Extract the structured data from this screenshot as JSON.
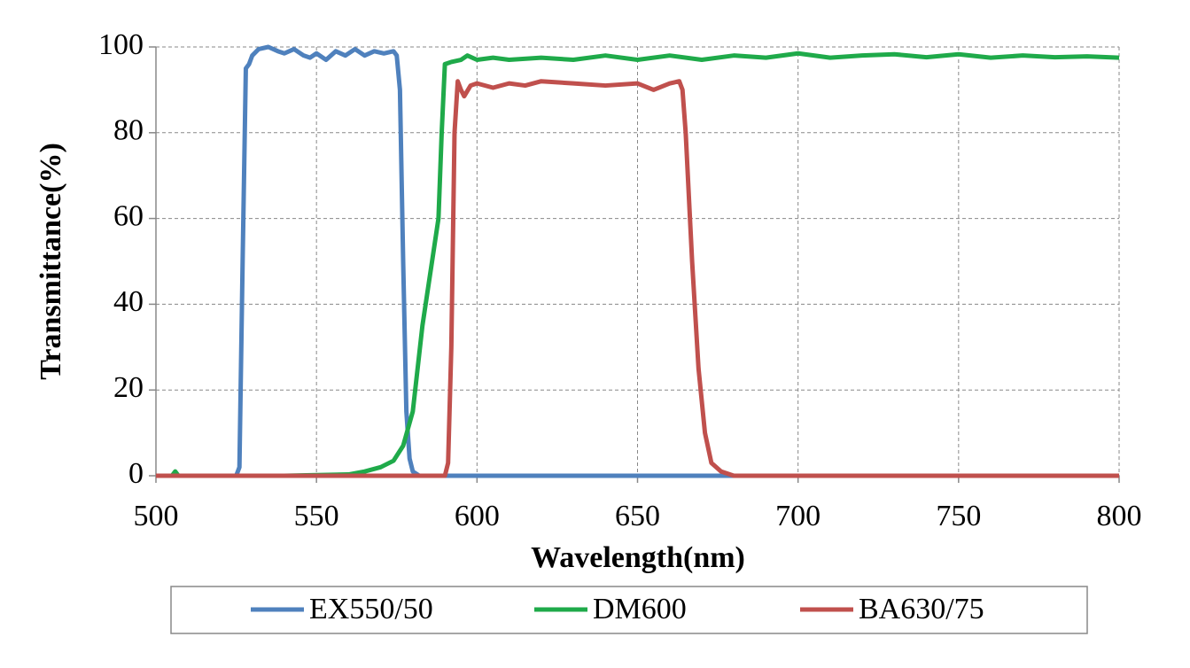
{
  "chart_data": {
    "type": "line",
    "x_label": "Wavelength(nm)",
    "y_label": "Transmittance(%)",
    "xlim": [
      500,
      800
    ],
    "xticks": [
      500,
      550,
      600,
      650,
      700,
      750,
      800
    ],
    "ylim": [
      0,
      100
    ],
    "yticks": [
      0,
      20,
      40,
      60,
      80,
      100
    ],
    "grid": true,
    "legend": "bottom",
    "series": [
      {
        "name": "EX550/50",
        "color": "#4f81bd",
        "x": [
          500,
          525,
          526,
          527,
          528,
          529,
          530,
          532,
          535,
          538,
          540,
          543,
          546,
          548,
          550,
          553,
          556,
          559,
          562,
          565,
          568,
          571,
          574,
          575,
          576,
          577,
          578,
          579,
          580,
          582,
          800
        ],
        "values": [
          0,
          0,
          2,
          50,
          95,
          96,
          98,
          99.5,
          100,
          99,
          98.5,
          99.5,
          98,
          97.5,
          98.5,
          97,
          99,
          98,
          99.5,
          98,
          99,
          98.5,
          99,
          98,
          90,
          50,
          15,
          4,
          1,
          0,
          0
        ]
      },
      {
        "name": "DM600",
        "color": "#1faa4a",
        "x": [
          500,
          505,
          506,
          507,
          540,
          560,
          565,
          570,
          574,
          577,
          580,
          583,
          586,
          588,
          589,
          590,
          592,
          595,
          597,
          600,
          605,
          610,
          620,
          630,
          640,
          650,
          660,
          670,
          680,
          690,
          700,
          710,
          720,
          730,
          740,
          750,
          760,
          770,
          780,
          790,
          800
        ],
        "values": [
          0,
          0,
          1,
          0,
          0,
          0.3,
          1,
          2,
          3.5,
          7,
          15,
          35,
          50,
          60,
          80,
          96,
          96.5,
          97,
          98,
          97,
          97.5,
          97,
          97.5,
          97,
          98,
          97,
          98,
          97,
          98,
          97.5,
          98.5,
          97.5,
          98,
          98.3,
          97.6,
          98.3,
          97.5,
          98,
          97.6,
          97.8,
          97.5
        ]
      },
      {
        "name": "BA630/75",
        "color": "#c0504d",
        "x": [
          500,
          590,
          591,
          592,
          593,
          594,
          595,
          596,
          598,
          600,
          605,
          610,
          615,
          620,
          630,
          640,
          650,
          655,
          660,
          663,
          664,
          665,
          667,
          669,
          671,
          673,
          676,
          680,
          800
        ],
        "values": [
          0,
          0,
          3,
          30,
          80,
          92,
          90,
          88.5,
          91,
          91.5,
          90.5,
          91.5,
          91,
          92,
          91.5,
          91,
          91.5,
          90,
          91.5,
          92,
          90,
          80,
          50,
          25,
          10,
          3,
          1,
          0,
          0
        ]
      }
    ]
  }
}
